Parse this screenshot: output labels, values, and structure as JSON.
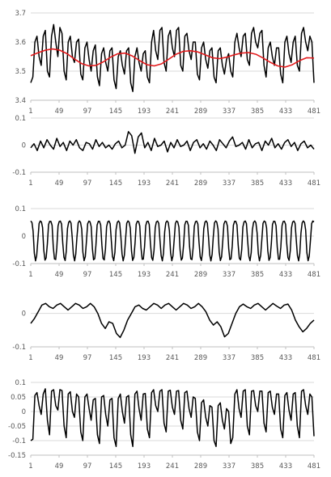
{
  "chart_data": [
    {
      "type": "line",
      "xticks": [
        1,
        49,
        97,
        145,
        193,
        241,
        289,
        337,
        385,
        433,
        481
      ],
      "yticks": [
        3.4,
        3.5,
        3.6,
        3.7
      ],
      "ytick_labels": [
        "3.4",
        "3.5",
        "3.6",
        "3.7"
      ],
      "ylim": [
        3.4,
        3.7
      ],
      "grid": true,
      "series": [
        {
          "color": "#000000",
          "values": [
            3.46,
            3.48,
            3.6,
            3.62,
            3.55,
            3.52,
            3.62,
            3.64,
            3.5,
            3.48,
            3.62,
            3.66,
            3.6,
            3.55,
            3.65,
            3.63,
            3.5,
            3.47,
            3.6,
            3.62,
            3.55,
            3.53,
            3.6,
            3.61,
            3.49,
            3.47,
            3.58,
            3.6,
            3.54,
            3.5,
            3.57,
            3.59,
            3.48,
            3.45,
            3.56,
            3.58,
            3.53,
            3.5,
            3.57,
            3.58,
            3.47,
            3.44,
            3.55,
            3.57,
            3.52,
            3.49,
            3.57,
            3.58,
            3.46,
            3.43,
            3.55,
            3.58,
            3.53,
            3.5,
            3.56,
            3.57,
            3.48,
            3.46,
            3.6,
            3.64,
            3.57,
            3.54,
            3.64,
            3.65,
            3.53,
            3.5,
            3.62,
            3.64,
            3.58,
            3.55,
            3.64,
            3.65,
            3.52,
            3.5,
            3.62,
            3.63,
            3.57,
            3.54,
            3.6,
            3.6,
            3.49,
            3.47,
            3.58,
            3.6,
            3.54,
            3.51,
            3.57,
            3.58,
            3.48,
            3.46,
            3.57,
            3.58,
            3.52,
            3.49,
            3.54,
            3.56,
            3.5,
            3.48,
            3.6,
            3.63,
            3.58,
            3.55,
            3.62,
            3.63,
            3.54,
            3.52,
            3.63,
            3.65,
            3.6,
            3.58,
            3.63,
            3.64,
            3.52,
            3.48,
            3.58,
            3.6,
            3.55,
            3.52,
            3.58,
            3.58,
            3.49,
            3.46,
            3.6,
            3.62,
            3.56,
            3.53,
            3.6,
            3.62,
            3.52,
            3.5,
            3.63,
            3.65,
            3.6,
            3.57,
            3.62,
            3.6,
            3.46
          ],
          "x_end": 481
        },
        {
          "color": "#e31a1c",
          "values": [
            3.553,
            3.563,
            3.572,
            3.576,
            3.572,
            3.56,
            3.542,
            3.526,
            3.518,
            3.52,
            3.532,
            3.548,
            3.56,
            3.562,
            3.552,
            3.536,
            3.522,
            3.518,
            3.525,
            3.541,
            3.558,
            3.568,
            3.57,
            3.566,
            3.556,
            3.546,
            3.543,
            3.548,
            3.556,
            3.562,
            3.564,
            3.558,
            3.545,
            3.53,
            3.518,
            3.514,
            3.522,
            3.536,
            3.546,
            3.545
          ],
          "x_end": 481
        }
      ]
    },
    {
      "type": "line",
      "xticks": [
        1,
        49,
        97,
        145,
        193,
        241,
        289,
        337,
        385,
        433,
        481
      ],
      "yticks": [
        -0.1,
        0,
        0.1
      ],
      "ytick_labels": [
        "-0.1",
        "0",
        "0.1"
      ],
      "ylim": [
        -0.1,
        0.1
      ],
      "grid": true,
      "series": [
        {
          "color": "#000000",
          "values": [
            -0.01,
            0.005,
            -0.02,
            0.015,
            -0.01,
            0.02,
            0.0,
            -0.015,
            0.025,
            -0.005,
            0.01,
            -0.02,
            0.015,
            0.0,
            0.02,
            -0.01,
            -0.02,
            0.01,
            0.005,
            -0.015,
            0.02,
            -0.005,
            0.01,
            -0.01,
            0.0,
            -0.015,
            0.005,
            0.015,
            -0.01,
            0.0,
            0.05,
            0.035,
            -0.03,
            0.03,
            0.045,
            -0.01,
            0.01,
            -0.02,
            0.025,
            -0.005,
            0.0,
            0.015,
            -0.025,
            0.01,
            -0.01,
            0.02,
            -0.005,
            0.0,
            0.015,
            -0.02,
            0.01,
            0.02,
            -0.01,
            0.005,
            -0.015,
            0.015,
            0.0,
            -0.02,
            0.02,
            0.005,
            -0.01,
            0.015,
            0.03,
            -0.005,
            0.0,
            0.01,
            -0.015,
            0.02,
            -0.01,
            0.005,
            0.01,
            -0.02,
            0.015,
            0.0,
            0.025,
            -0.01,
            0.005,
            -0.015,
            0.01,
            0.02,
            -0.005,
            0.01,
            -0.02,
            0.005,
            0.015,
            -0.01,
            0.0,
            -0.015
          ],
          "x_end": 481
        }
      ]
    },
    {
      "type": "line",
      "xticks": [
        1,
        49,
        97,
        145,
        193,
        241,
        289,
        337,
        385,
        433,
        481
      ],
      "yticks": [
        -0.1,
        0,
        0.1
      ],
      "ytick_labels": [
        "-0.1",
        "0",
        "0.1"
      ],
      "ylim": [
        -0.1,
        0.1
      ],
      "grid": true,
      "periodic": {
        "period": 16.5,
        "high": 0.055,
        "low": -0.092
      },
      "series": [
        {
          "color": "#000000",
          "x_end": 481
        }
      ]
    },
    {
      "type": "line",
      "xticks": [
        1,
        49,
        97,
        145,
        193,
        241,
        289,
        337,
        385,
        433,
        481
      ],
      "yticks": [
        -0.1,
        0
      ],
      "ytick_labels": [
        "-0.1",
        "0"
      ],
      "ylim": [
        -0.1,
        0.05
      ],
      "grid": true,
      "series": [
        {
          "color": "#000000",
          "values": [
            -0.03,
            -0.015,
            0.005,
            0.025,
            0.03,
            0.02,
            0.015,
            0.025,
            0.03,
            0.02,
            0.01,
            0.02,
            0.03,
            0.025,
            0.015,
            0.02,
            0.03,
            0.02,
            0.0,
            -0.03,
            -0.045,
            -0.025,
            -0.03,
            -0.06,
            -0.072,
            -0.05,
            -0.02,
            0.0,
            0.02,
            0.025,
            0.015,
            0.01,
            0.02,
            0.03,
            0.025,
            0.015,
            0.025,
            0.03,
            0.02,
            0.01,
            0.02,
            0.03,
            0.025,
            0.015,
            0.02,
            0.03,
            0.02,
            0.005,
            -0.02,
            -0.035,
            -0.025,
            -0.04,
            -0.07,
            -0.06,
            -0.03,
            0.0,
            0.02,
            0.028,
            0.02,
            0.015,
            0.025,
            0.03,
            0.02,
            0.01,
            0.02,
            0.03,
            0.022,
            0.015,
            0.025,
            0.028,
            0.01,
            -0.02,
            -0.04,
            -0.055,
            -0.045,
            -0.03,
            -0.02
          ],
          "x_end": 481
        }
      ]
    },
    {
      "type": "line",
      "xticks": [
        1,
        49,
        97,
        145,
        193,
        241,
        289,
        337,
        385,
        433,
        481
      ],
      "yticks": [
        -0.15,
        -0.1,
        -0.05,
        0,
        0.05,
        0.1
      ],
      "ytick_labels": [
        "-0.15",
        "-0.1",
        "-0.05",
        "0",
        "0.05",
        "0.1"
      ],
      "ylim": [
        -0.15,
        0.1
      ],
      "grid": true,
      "series": [
        {
          "color": "#000000",
          "values": [
            -0.1,
            -0.095,
            0.055,
            0.065,
            0.02,
            -0.01,
            0.06,
            0.078,
            -0.03,
            -0.08,
            0.07,
            0.075,
            0.02,
            0.005,
            0.075,
            0.072,
            -0.05,
            -0.09,
            0.06,
            0.068,
            0.0,
            -0.02,
            0.06,
            0.05,
            -0.07,
            -0.1,
            0.05,
            0.06,
            0.01,
            -0.03,
            0.04,
            0.045,
            -0.08,
            -0.11,
            0.05,
            0.055,
            -0.01,
            -0.05,
            0.04,
            0.045,
            -0.09,
            -0.12,
            0.045,
            0.06,
            0.0,
            -0.04,
            0.05,
            0.055,
            -0.08,
            -0.12,
            0.06,
            0.07,
            0.01,
            -0.03,
            0.06,
            0.062,
            -0.06,
            -0.09,
            0.065,
            0.075,
            0.02,
            0.0,
            0.07,
            0.075,
            -0.04,
            -0.07,
            0.07,
            0.073,
            0.015,
            -0.01,
            0.07,
            0.072,
            -0.03,
            -0.06,
            0.065,
            0.07,
            0.01,
            -0.02,
            0.05,
            0.045,
            -0.07,
            -0.1,
            0.03,
            0.04,
            -0.02,
            -0.05,
            0.02,
            0.015,
            -0.1,
            -0.12,
            0.02,
            0.03,
            -0.03,
            -0.06,
            0.01,
            0.0,
            -0.11,
            -0.09,
            0.06,
            0.075,
            0.01,
            -0.02,
            0.07,
            0.075,
            -0.05,
            -0.08,
            0.07,
            0.072,
            0.02,
            0.0,
            0.07,
            0.07,
            -0.04,
            -0.07,
            0.065,
            0.07,
            0.015,
            -0.01,
            0.06,
            0.06,
            -0.06,
            -0.09,
            0.055,
            0.065,
            0.005,
            -0.03,
            0.06,
            0.065,
            -0.05,
            -0.09,
            0.07,
            0.075,
            0.02,
            -0.01,
            0.06,
            0.05,
            -0.085
          ],
          "x_end": 481
        }
      ]
    }
  ]
}
